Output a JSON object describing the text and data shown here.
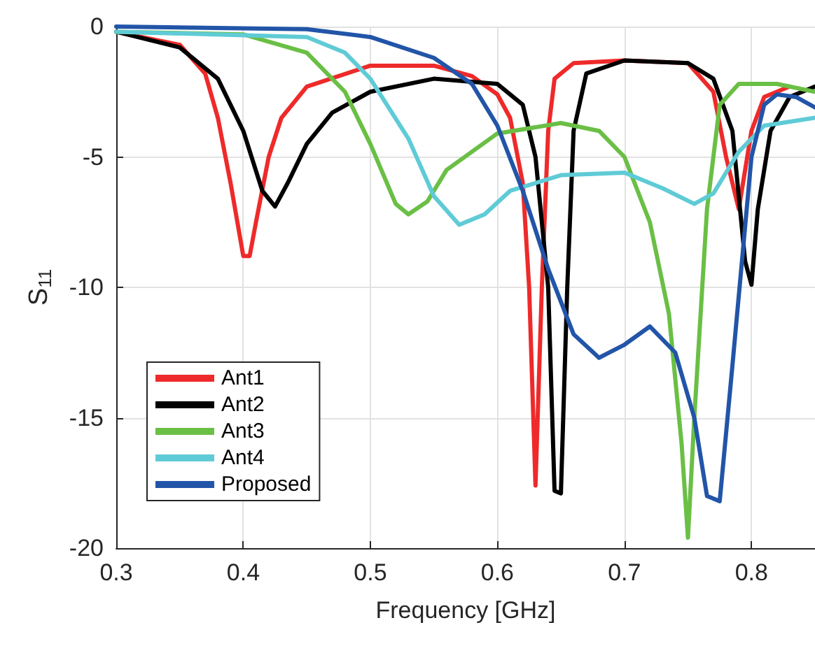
{
  "chart_data": {
    "type": "line",
    "xlabel": "Frequency [GHz]",
    "ylabel": "S$_{11}$",
    "xlim": [
      0.3,
      0.85
    ],
    "xticks": [
      0.3,
      0.4,
      0.5,
      0.6,
      0.7,
      0.8
    ],
    "ylim": [
      -20,
      0
    ],
    "yticks": [
      -20,
      -15,
      -10,
      -5,
      0
    ],
    "grid": true,
    "legend": "bottom left",
    "marker": "none",
    "line_style": "solid",
    "series": [
      {
        "name": "Ant1",
        "color": "#ee2a2a",
        "x": [
          0.3,
          0.35,
          0.37,
          0.38,
          0.39,
          0.4,
          0.405,
          0.41,
          0.42,
          0.43,
          0.45,
          0.5,
          0.55,
          0.58,
          0.6,
          0.61,
          0.62,
          0.625,
          0.63,
          0.635,
          0.64,
          0.645,
          0.66,
          0.7,
          0.75,
          0.77,
          0.78,
          0.79,
          0.8,
          0.81,
          0.83
        ],
        "values": [
          -0.2,
          -0.7,
          -1.8,
          -3.5,
          -6,
          -8.8,
          -8.8,
          -7.5,
          -5,
          -3.5,
          -2.3,
          -1.5,
          -1.5,
          -1.9,
          -2.6,
          -3.5,
          -6,
          -10,
          -17.6,
          -10,
          -4,
          -2,
          -1.4,
          -1.3,
          -1.4,
          -2.5,
          -5,
          -7,
          -4,
          -2.7,
          -2.3
        ]
      },
      {
        "name": "Ant2",
        "color": "#000000",
        "x": [
          0.3,
          0.35,
          0.38,
          0.4,
          0.415,
          0.425,
          0.435,
          0.45,
          0.47,
          0.5,
          0.55,
          0.6,
          0.62,
          0.63,
          0.64,
          0.645,
          0.65,
          0.655,
          0.66,
          0.67,
          0.7,
          0.75,
          0.77,
          0.785,
          0.795,
          0.8,
          0.805,
          0.815,
          0.83,
          0.85
        ],
        "values": [
          -0.2,
          -0.8,
          -2,
          -4,
          -6.3,
          -6.9,
          -6,
          -4.5,
          -3.3,
          -2.5,
          -2,
          -2.2,
          -3,
          -5,
          -10,
          -17.8,
          -17.9,
          -10,
          -4,
          -1.8,
          -1.3,
          -1.4,
          -2,
          -4,
          -9,
          -9.9,
          -7,
          -4,
          -2.7,
          -2.3
        ]
      },
      {
        "name": "Ant3",
        "color": "#6abf45",
        "x": [
          0.3,
          0.4,
          0.45,
          0.48,
          0.5,
          0.52,
          0.53,
          0.545,
          0.56,
          0.6,
          0.65,
          0.68,
          0.7,
          0.72,
          0.735,
          0.745,
          0.75,
          0.755,
          0.765,
          0.775,
          0.79,
          0.82,
          0.85
        ],
        "values": [
          -0.2,
          -0.3,
          -1,
          -2.5,
          -4.5,
          -6.8,
          -7.2,
          -6.7,
          -5.5,
          -4.1,
          -3.7,
          -4,
          -5,
          -7.5,
          -11,
          -16,
          -19.6,
          -15,
          -7,
          -3,
          -2.2,
          -2.2,
          -2.5
        ]
      },
      {
        "name": "Ant4",
        "color": "#5fcbd6",
        "x": [
          0.3,
          0.45,
          0.48,
          0.5,
          0.53,
          0.55,
          0.57,
          0.59,
          0.61,
          0.65,
          0.7,
          0.73,
          0.755,
          0.77,
          0.79,
          0.81,
          0.85
        ],
        "values": [
          -0.2,
          -0.4,
          -1,
          -2,
          -4.3,
          -6.5,
          -7.6,
          -7.2,
          -6.3,
          -5.7,
          -5.6,
          -6.2,
          -6.8,
          -6.4,
          -4.8,
          -3.8,
          -3.5
        ]
      },
      {
        "name": "Proposed",
        "color": "#2255a8",
        "x": [
          0.3,
          0.45,
          0.5,
          0.55,
          0.58,
          0.6,
          0.62,
          0.64,
          0.66,
          0.68,
          0.7,
          0.72,
          0.74,
          0.755,
          0.765,
          0.775,
          0.785,
          0.8,
          0.81,
          0.82,
          0.835,
          0.85
        ],
        "values": [
          0,
          -0.1,
          -0.4,
          -1.2,
          -2.2,
          -3.8,
          -6.3,
          -9.3,
          -11.8,
          -12.7,
          -12.2,
          -11.5,
          -12.5,
          -15,
          -18,
          -18.2,
          -13,
          -5,
          -3,
          -2.6,
          -2.7,
          -3.1
        ]
      }
    ]
  }
}
